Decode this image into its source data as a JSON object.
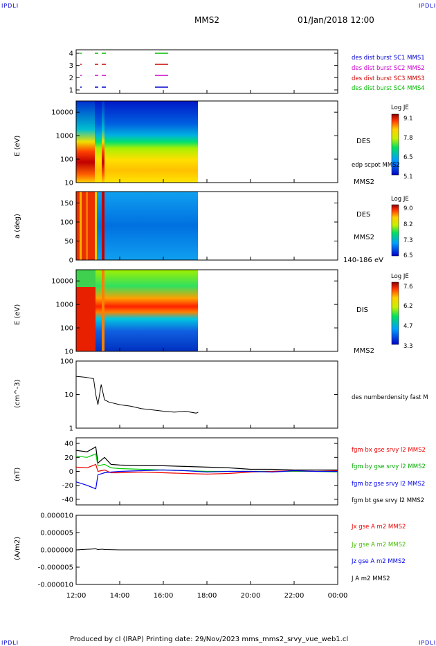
{
  "header": {
    "corner_left": "IPDLI",
    "corner_right": "IPDLI",
    "spacecraft": "MMS2",
    "date": "01/Jan/2018 12:00"
  },
  "footer": {
    "text": "Produced by cl (IRAP)   Printing date: 29/Nov/2023   mms_mms2_srvy_vue_web1.cl",
    "corner_left": "IPDLI",
    "corner_right": "IPDLI"
  },
  "x_axis": {
    "ticks": [
      "12:00",
      "14:00",
      "16:00",
      "18:00",
      "20:00",
      "22:00",
      "00:00"
    ]
  },
  "colors": {
    "mms1": "#0000cc",
    "mms2": "#cc00cc",
    "mms3": "#cc0000",
    "mms4": "#00bb00",
    "bx": "#ee0000",
    "by": "#00cc00",
    "bz": "#0000ee",
    "bt": "#000000",
    "jx": "#ee0000",
    "jy": "#44bb00",
    "jz": "#0000ee",
    "j": "#000000"
  },
  "chart_data": [
    {
      "type": "line",
      "title": "",
      "ylabel": "",
      "yticks": [
        "4",
        "3",
        "2",
        "1"
      ],
      "legend": [
        "des dist burst SC1 MMS1",
        "des dist burst SC2 MMS2",
        "des dist burst SC3 MMS3",
        "des dist burst SC4 MMS4"
      ]
    },
    {
      "type": "heatmap",
      "ylabel": "E (eV)",
      "yticks": [
        "10000",
        "1000",
        "100",
        "10"
      ],
      "ylim": [
        10,
        30000
      ],
      "log_y": true,
      "right_labels": [
        "DES",
        "edp scpot MMS2",
        "MMS2"
      ],
      "colorbar": {
        "title": "Log JE",
        "ticks": [
          "9.1",
          "7.8",
          "6.5",
          "5.1"
        ]
      }
    },
    {
      "type": "heatmap",
      "ylabel": "a (deg)",
      "yticks": [
        "150",
        "100",
        "50",
        "0"
      ],
      "ylim": [
        0,
        180
      ],
      "right_labels": [
        "DES",
        "MMS2",
        "140-186 eV"
      ],
      "colorbar": {
        "title": "Log JE",
        "ticks": [
          "9.0",
          "8.2",
          "7.3",
          "6.5"
        ]
      }
    },
    {
      "type": "heatmap",
      "ylabel": "E (eV)",
      "yticks": [
        "10000",
        "1000",
        "100",
        "10"
      ],
      "ylim": [
        10,
        30000
      ],
      "log_y": true,
      "right_labels": [
        "DIS",
        "MMS2"
      ],
      "colorbar": {
        "title": "Log JE",
        "ticks": [
          "7.6",
          "6.2",
          "4.7",
          "3.3"
        ]
      }
    },
    {
      "type": "line",
      "ylabel": "(cm^-3)",
      "yticks": [
        "100",
        "10",
        "1"
      ],
      "ylim": [
        1,
        100
      ],
      "log_y": true,
      "legend": [
        "des numberdensity fast M"
      ],
      "series": [
        {
          "x_hours": [
            12.0,
            12.4,
            12.8,
            12.9,
            13.0,
            13.15,
            13.3,
            13.5,
            14.0,
            14.5,
            15.0,
            15.5,
            16.0,
            16.5,
            17.0,
            17.5,
            17.6
          ],
          "values": [
            35,
            33,
            30,
            10,
            5,
            20,
            7,
            6,
            5,
            4.5,
            3.8,
            3.5,
            3.2,
            3.0,
            3.2,
            2.8,
            3.0
          ]
        }
      ]
    },
    {
      "type": "line",
      "ylabel": "(nT)",
      "yticks": [
        "40",
        "20",
        "0",
        "-20",
        "-40"
      ],
      "ylim": [
        -48,
        48
      ],
      "legend": [
        "fgm bx gse srvy l2 MMS2",
        "fgm by gse srvy l2 MMS2",
        "fgm bz gse srvy l2 MMS2",
        "fgm bt gse srvy l2 MMS2"
      ],
      "x_hours": [
        12.0,
        12.5,
        12.9,
        13.0,
        13.3,
        13.6,
        14.0,
        15.0,
        16.0,
        17.0,
        18.0,
        19.0,
        20.0,
        21.0,
        22.0,
        23.0,
        24.0
      ],
      "series": [
        {
          "name": "fgm bt gse srvy l2 MMS2",
          "values": [
            30,
            28,
            35,
            12,
            20,
            10,
            9,
            8,
            8,
            7,
            6,
            5,
            3,
            3,
            2,
            2,
            2
          ]
        },
        {
          "name": "fgm by gse srvy l2 MMS2",
          "values": [
            22,
            20,
            25,
            8,
            10,
            5,
            4,
            3,
            2,
            1,
            0,
            0,
            0,
            0,
            0,
            0,
            -1
          ]
        },
        {
          "name": "fgm bx gse srvy l2 MMS2",
          "values": [
            6,
            5,
            10,
            0,
            2,
            -2,
            -2,
            -1,
            -2,
            -3,
            -4,
            -3,
            -1,
            0,
            1,
            0,
            1
          ]
        },
        {
          "name": "fgm bz gse srvy l2 MMS2",
          "values": [
            -15,
            -20,
            -25,
            -5,
            -2,
            -1,
            0,
            1,
            2,
            1,
            -1,
            0,
            0,
            -1,
            1,
            0,
            0
          ]
        }
      ]
    },
    {
      "type": "line",
      "ylabel": "(A/m2)",
      "yticks": [
        "0.000010",
        "0.000005",
        "0.000000",
        "-0.000005",
        "-0.000010"
      ],
      "ylim": [
        -1e-05,
        1e-05
      ],
      "legend": [
        "Jx gse A m2 MMS2",
        "Jy gse A m2 MMS2",
        "Jz gse A m2 MMS2",
        "J A m2 MMS2"
      ],
      "x_hours": [
        12.0,
        12.9,
        13.0,
        13.2,
        13.3,
        14.0,
        18.0,
        24.0
      ],
      "series": [
        {
          "name": "J A m2 MMS2",
          "values": [
            0,
            3e-07,
            1e-07,
            2e-07,
            1e-07,
            0,
            0,
            0
          ]
        }
      ]
    }
  ]
}
